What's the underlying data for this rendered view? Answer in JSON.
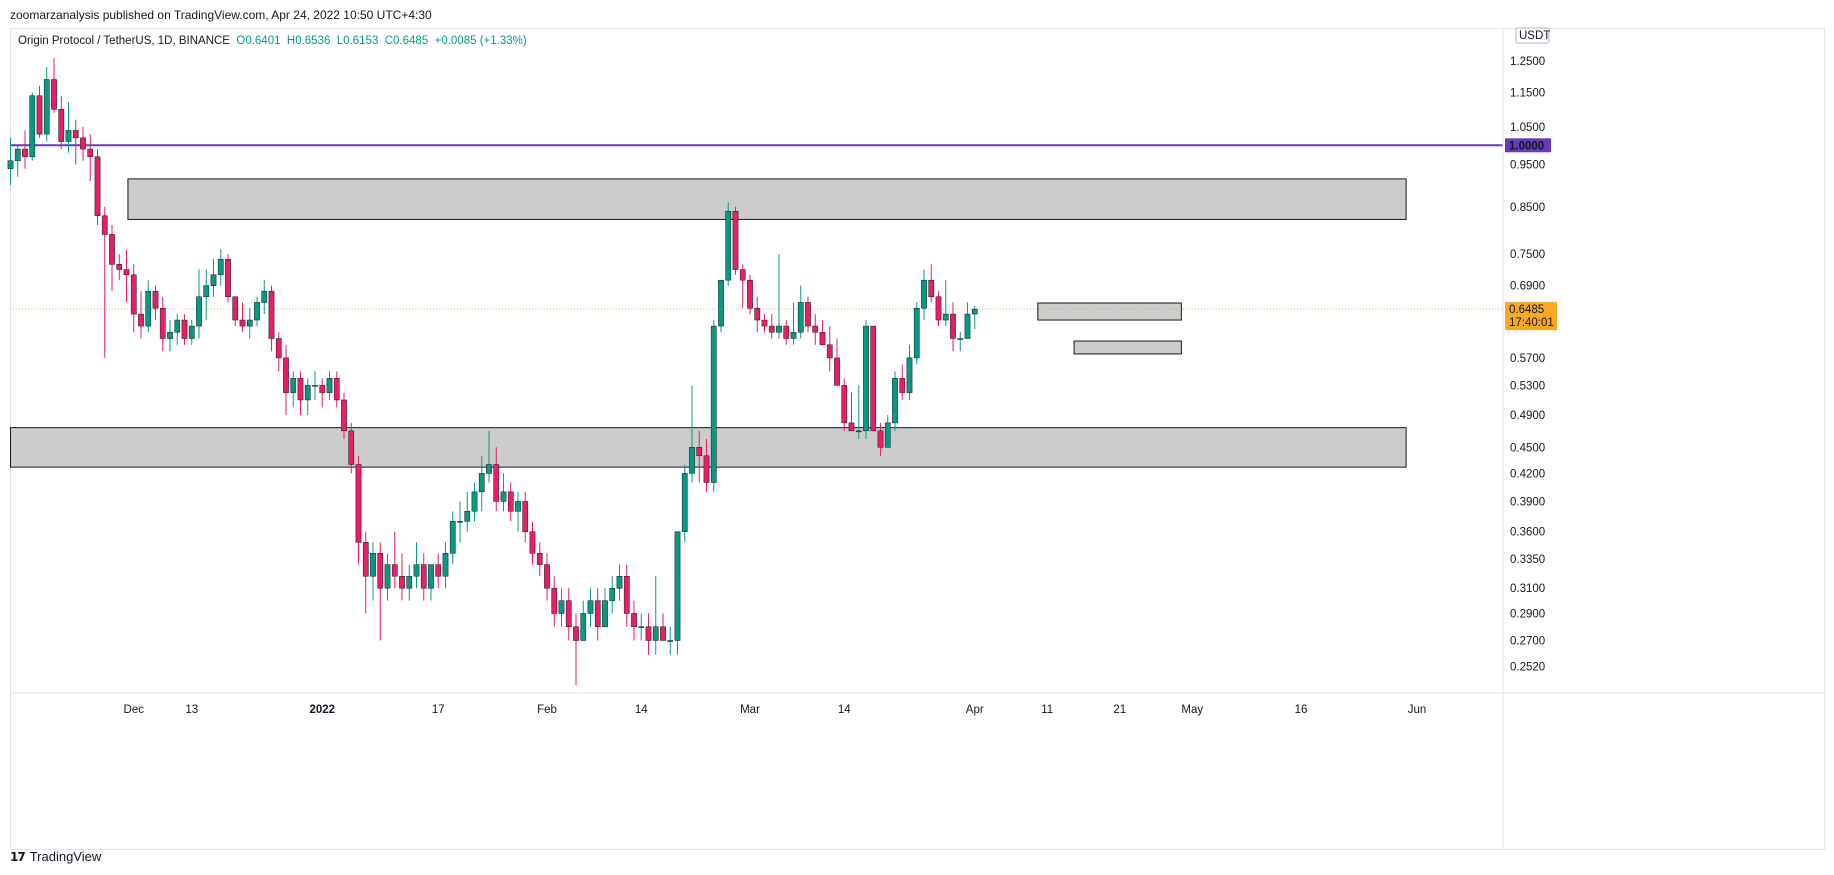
{
  "header": {
    "publisher": "zoomarzanalysis published on TradingView.com, Apr 24, 2022 10:50 UTC+4:30"
  },
  "legend": {
    "symbol": "Origin Protocol / TetherUS, 1D, BINANCE",
    "open": "O0.6401",
    "high": "H0.6536",
    "low": "L0.6153",
    "close": "C0.6485",
    "change": "+0.0085 (+1.33%)"
  },
  "footer": {
    "brand": "TradingView",
    "logo_mark": "17"
  },
  "colors": {
    "up": "#089981",
    "down": "#f23645",
    "down_alt": "#e91e63",
    "resistance_line": "#673ab7",
    "current_price": "#f9a825",
    "zone_fill": "#cccccc",
    "zone_stroke": "#131722"
  },
  "chart_data": {
    "type": "candlestick",
    "title": "Origin Protocol / TetherUS, 1D, BINANCE",
    "currency_label": "USDT",
    "y_scale": "log",
    "ylim": [
      0.235,
      1.36
    ],
    "y_ticks": [
      "1.2500",
      "1.1500",
      "1.0500",
      "0.9500",
      "0.8500",
      "0.7500",
      "0.6900",
      "0.5700",
      "0.5300",
      "0.4900",
      "0.4500",
      "0.4200",
      "0.3900",
      "0.3600",
      "0.3350",
      "0.3100",
      "0.2900",
      "0.2700",
      "0.2520"
    ],
    "x_ticks": [
      {
        "label": "Dec",
        "day": 5
      },
      {
        "label": "13",
        "day": 13
      },
      {
        "label": "2022",
        "day": 31
      },
      {
        "label": "17",
        "day": 47
      },
      {
        "label": "Feb",
        "day": 62
      },
      {
        "label": "14",
        "day": 75
      },
      {
        "label": "Mar",
        "day": 90
      },
      {
        "label": "14",
        "day": 103
      },
      {
        "label": "Apr",
        "day": 121
      },
      {
        "label": "11",
        "day": 131
      },
      {
        "label": "21",
        "day": 141
      },
      {
        "label": "May",
        "day": 151
      },
      {
        "label": "16",
        "day": 166
      },
      {
        "label": "Jun",
        "day": 182
      }
    ],
    "horizontal_line": {
      "price": 1.0,
      "label": "1.0000"
    },
    "current_price": {
      "price": 0.6485,
      "label": "0.6485",
      "countdown": "17:40:01"
    },
    "zones": [
      {
        "name": "upper-supply-zone",
        "from_day": 4.2,
        "to_day": 180.5,
        "top": 0.915,
        "bottom": 0.822
      },
      {
        "name": "lower-demand-zone",
        "from_day": -12,
        "to_day": 180.5,
        "top": 0.474,
        "bottom": 0.427
      },
      {
        "name": "small-resistance-box",
        "from_day": 129.7,
        "to_day": 149.5,
        "top": 0.659,
        "bottom": 0.63
      },
      {
        "name": "small-support-box",
        "from_day": 134.7,
        "to_day": 149.5,
        "top": 0.596,
        "bottom": 0.576
      }
    ],
    "candles": [
      [
        0.94,
        1.02,
        0.9,
        0.96
      ],
      [
        0.96,
        1.0,
        0.92,
        0.99
      ],
      [
        0.99,
        1.04,
        0.94,
        0.97
      ],
      [
        0.97,
        1.15,
        0.96,
        1.14
      ],
      [
        1.14,
        1.17,
        1.02,
        1.03
      ],
      [
        1.03,
        1.23,
        1.01,
        1.19
      ],
      [
        1.19,
        1.26,
        1.09,
        1.1
      ],
      [
        1.1,
        1.14,
        0.99,
        1.01
      ],
      [
        1.01,
        1.12,
        0.98,
        1.04
      ],
      [
        1.04,
        1.07,
        0.95,
        1.02
      ],
      [
        1.02,
        1.05,
        0.96,
        0.99
      ],
      [
        0.99,
        1.03,
        0.91,
        0.97
      ],
      [
        0.97,
        0.99,
        0.81,
        0.83
      ],
      [
        0.83,
        0.85,
        0.57,
        0.79
      ],
      [
        0.79,
        0.81,
        0.68,
        0.73
      ],
      [
        0.73,
        0.75,
        0.7,
        0.72
      ],
      [
        0.72,
        0.76,
        0.66,
        0.71
      ],
      [
        0.71,
        0.73,
        0.61,
        0.64
      ],
      [
        0.64,
        0.68,
        0.6,
        0.62
      ],
      [
        0.62,
        0.7,
        0.61,
        0.68
      ],
      [
        0.68,
        0.69,
        0.63,
        0.65
      ],
      [
        0.65,
        0.67,
        0.58,
        0.6
      ],
      [
        0.6,
        0.63,
        0.58,
        0.61
      ],
      [
        0.61,
        0.64,
        0.59,
        0.63
      ],
      [
        0.63,
        0.64,
        0.59,
        0.6
      ],
      [
        0.6,
        0.63,
        0.59,
        0.62
      ],
      [
        0.62,
        0.72,
        0.6,
        0.67
      ],
      [
        0.67,
        0.72,
        0.63,
        0.69
      ],
      [
        0.69,
        0.74,
        0.67,
        0.71
      ],
      [
        0.71,
        0.76,
        0.69,
        0.74
      ],
      [
        0.74,
        0.75,
        0.66,
        0.67
      ],
      [
        0.67,
        0.67,
        0.62,
        0.63
      ],
      [
        0.63,
        0.66,
        0.61,
        0.62
      ],
      [
        0.62,
        0.65,
        0.6,
        0.63
      ],
      [
        0.63,
        0.67,
        0.62,
        0.66
      ],
      [
        0.66,
        0.7,
        0.64,
        0.68
      ],
      [
        0.68,
        0.69,
        0.58,
        0.6
      ],
      [
        0.6,
        0.61,
        0.55,
        0.57
      ],
      [
        0.57,
        0.59,
        0.49,
        0.52
      ],
      [
        0.52,
        0.55,
        0.5,
        0.54
      ],
      [
        0.54,
        0.55,
        0.49,
        0.51
      ],
      [
        0.51,
        0.54,
        0.49,
        0.53
      ],
      [
        0.53,
        0.55,
        0.51,
        0.53
      ],
      [
        0.53,
        0.54,
        0.5,
        0.52
      ],
      [
        0.52,
        0.55,
        0.51,
        0.54
      ],
      [
        0.54,
        0.55,
        0.5,
        0.51
      ],
      [
        0.51,
        0.52,
        0.46,
        0.47
      ],
      [
        0.47,
        0.48,
        0.42,
        0.43
      ],
      [
        0.43,
        0.44,
        0.33,
        0.35
      ],
      [
        0.35,
        0.36,
        0.29,
        0.32
      ],
      [
        0.32,
        0.35,
        0.3,
        0.34
      ],
      [
        0.34,
        0.35,
        0.27,
        0.31
      ],
      [
        0.31,
        0.34,
        0.3,
        0.33
      ],
      [
        0.33,
        0.36,
        0.31,
        0.32
      ],
      [
        0.32,
        0.34,
        0.3,
        0.31
      ],
      [
        0.31,
        0.33,
        0.3,
        0.32
      ],
      [
        0.32,
        0.35,
        0.31,
        0.33
      ],
      [
        0.33,
        0.34,
        0.3,
        0.31
      ],
      [
        0.31,
        0.33,
        0.3,
        0.33
      ],
      [
        0.33,
        0.34,
        0.31,
        0.32
      ],
      [
        0.32,
        0.35,
        0.31,
        0.34
      ],
      [
        0.34,
        0.38,
        0.33,
        0.37
      ],
      [
        0.37,
        0.39,
        0.35,
        0.37
      ],
      [
        0.37,
        0.4,
        0.36,
        0.38
      ],
      [
        0.38,
        0.41,
        0.37,
        0.4
      ],
      [
        0.4,
        0.44,
        0.38,
        0.42
      ],
      [
        0.42,
        0.47,
        0.41,
        0.43
      ],
      [
        0.43,
        0.45,
        0.38,
        0.39
      ],
      [
        0.39,
        0.42,
        0.38,
        0.4
      ],
      [
        0.4,
        0.41,
        0.37,
        0.38
      ],
      [
        0.38,
        0.4,
        0.36,
        0.39
      ],
      [
        0.39,
        0.4,
        0.35,
        0.36
      ],
      [
        0.36,
        0.37,
        0.33,
        0.34
      ],
      [
        0.34,
        0.35,
        0.32,
        0.33
      ],
      [
        0.33,
        0.34,
        0.3,
        0.31
      ],
      [
        0.31,
        0.32,
        0.28,
        0.29
      ],
      [
        0.29,
        0.31,
        0.28,
        0.3
      ],
      [
        0.3,
        0.31,
        0.27,
        0.28
      ],
      [
        0.28,
        0.29,
        0.24,
        0.27
      ],
      [
        0.27,
        0.3,
        0.27,
        0.29
      ],
      [
        0.29,
        0.31,
        0.28,
        0.3
      ],
      [
        0.3,
        0.31,
        0.27,
        0.28
      ],
      [
        0.28,
        0.31,
        0.28,
        0.3
      ],
      [
        0.3,
        0.32,
        0.29,
        0.31
      ],
      [
        0.31,
        0.33,
        0.3,
        0.32
      ],
      [
        0.32,
        0.33,
        0.28,
        0.29
      ],
      [
        0.29,
        0.3,
        0.27,
        0.28
      ],
      [
        0.28,
        0.29,
        0.27,
        0.28
      ],
      [
        0.28,
        0.29,
        0.26,
        0.27
      ],
      [
        0.27,
        0.32,
        0.26,
        0.28
      ],
      [
        0.28,
        0.29,
        0.27,
        0.27
      ],
      [
        0.27,
        0.28,
        0.26,
        0.27
      ],
      [
        0.27,
        0.36,
        0.26,
        0.36
      ],
      [
        0.36,
        0.43,
        0.35,
        0.42
      ],
      [
        0.42,
        0.53,
        0.41,
        0.45
      ],
      [
        0.45,
        0.47,
        0.41,
        0.44
      ],
      [
        0.44,
        0.46,
        0.4,
        0.41
      ],
      [
        0.41,
        0.63,
        0.4,
        0.62
      ],
      [
        0.62,
        0.7,
        0.61,
        0.7
      ],
      [
        0.7,
        0.86,
        0.69,
        0.84
      ],
      [
        0.84,
        0.85,
        0.71,
        0.72
      ],
      [
        0.72,
        0.73,
        0.65,
        0.7
      ],
      [
        0.7,
        0.71,
        0.64,
        0.65
      ],
      [
        0.65,
        0.67,
        0.61,
        0.63
      ],
      [
        0.63,
        0.64,
        0.61,
        0.62
      ],
      [
        0.62,
        0.64,
        0.6,
        0.61
      ],
      [
        0.61,
        0.75,
        0.6,
        0.62
      ],
      [
        0.62,
        0.63,
        0.59,
        0.6
      ],
      [
        0.6,
        0.66,
        0.59,
        0.61
      ],
      [
        0.61,
        0.69,
        0.6,
        0.66
      ],
      [
        0.66,
        0.67,
        0.61,
        0.62
      ],
      [
        0.62,
        0.64,
        0.59,
        0.61
      ],
      [
        0.61,
        0.63,
        0.59,
        0.59
      ],
      [
        0.59,
        0.62,
        0.55,
        0.57
      ],
      [
        0.57,
        0.6,
        0.53,
        0.53
      ],
      [
        0.53,
        0.54,
        0.47,
        0.48
      ],
      [
        0.48,
        0.52,
        0.47,
        0.47
      ],
      [
        0.47,
        0.53,
        0.46,
        0.47
      ],
      [
        0.47,
        0.63,
        0.46,
        0.62
      ],
      [
        0.62,
        0.62,
        0.47,
        0.47
      ],
      [
        0.47,
        0.48,
        0.44,
        0.45
      ],
      [
        0.45,
        0.49,
        0.45,
        0.48
      ],
      [
        0.48,
        0.55,
        0.47,
        0.54
      ],
      [
        0.54,
        0.56,
        0.51,
        0.52
      ],
      [
        0.52,
        0.59,
        0.51,
        0.57
      ],
      [
        0.57,
        0.66,
        0.56,
        0.65
      ],
      [
        0.65,
        0.72,
        0.63,
        0.7
      ],
      [
        0.7,
        0.73,
        0.66,
        0.67
      ],
      [
        0.67,
        0.68,
        0.62,
        0.63
      ],
      [
        0.63,
        0.7,
        0.62,
        0.64
      ],
      [
        0.64,
        0.66,
        0.58,
        0.6
      ],
      [
        0.6,
        0.61,
        0.58,
        0.6
      ],
      [
        0.6,
        0.66,
        0.6,
        0.64
      ],
      [
        0.64,
        0.6536,
        0.6153,
        0.6485
      ]
    ],
    "candle_days": "-12 through 121 (one per day, including today = 0.6485)"
  }
}
